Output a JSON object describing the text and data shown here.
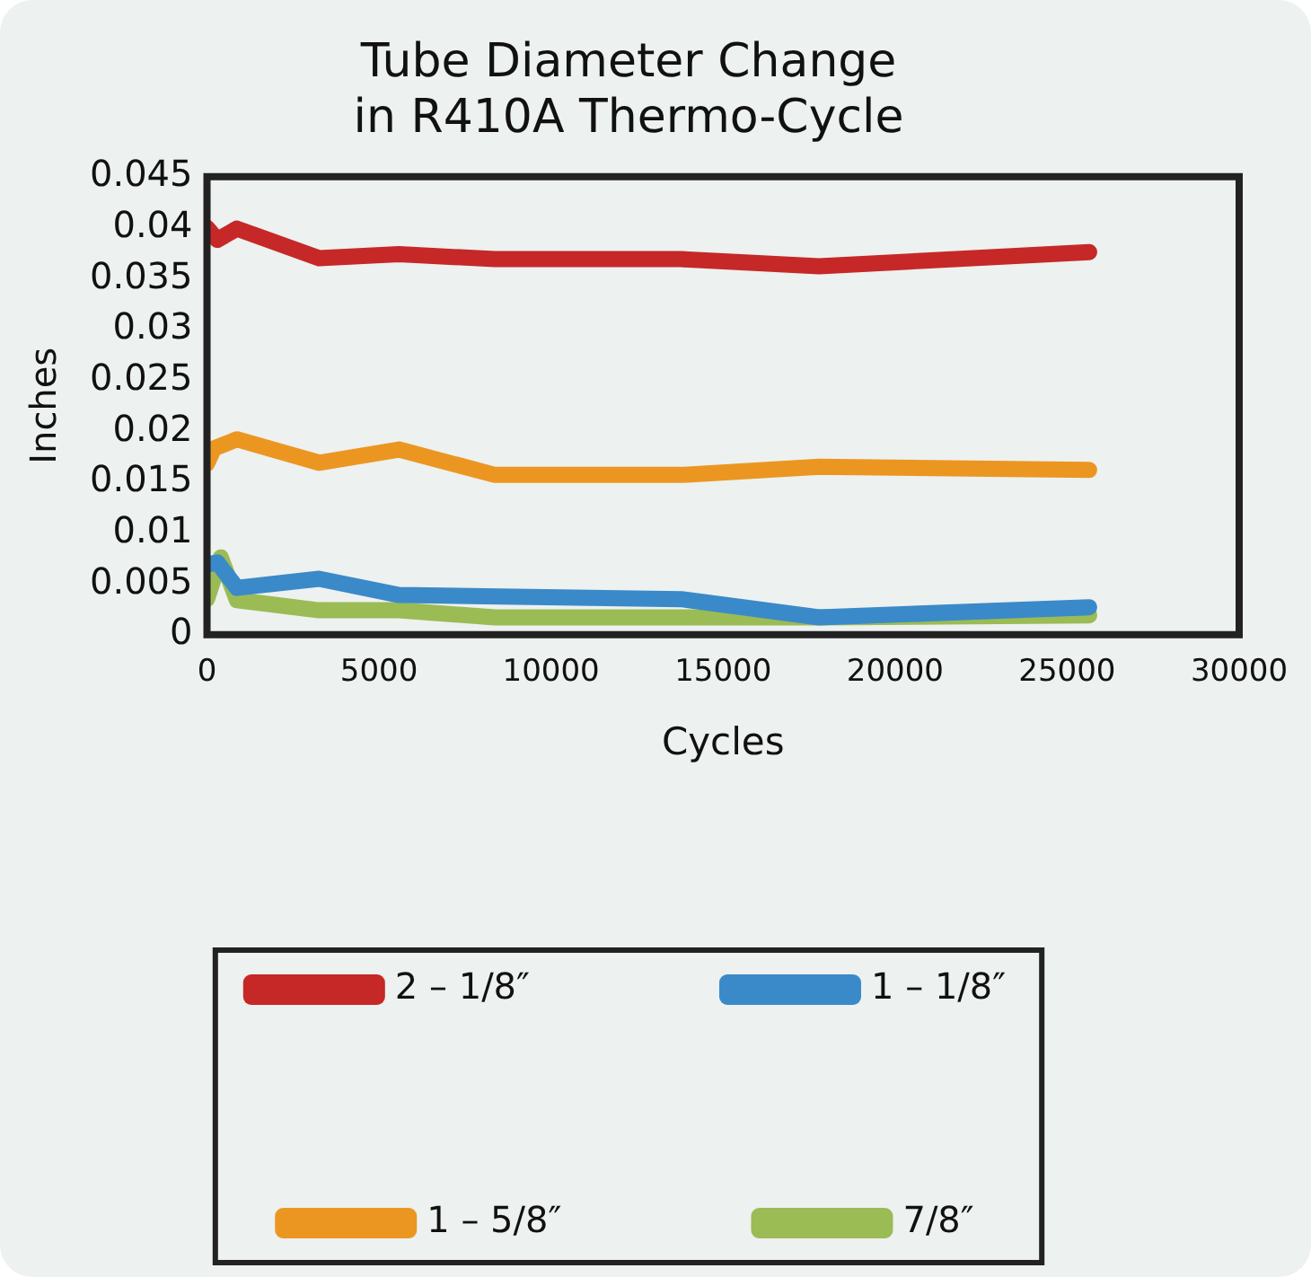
{
  "chart_data": {
    "type": "line",
    "title": "Tube Diameter Change\nin R410A Thermo-Cycle",
    "xlabel": "Cycles",
    "ylabel": "Inches",
    "xlim": [
      0,
      30000
    ],
    "xticks": [
      0,
      5000,
      10000,
      15000,
      20000,
      25000,
      30000
    ],
    "ylim": [
      0,
      0.045
    ],
    "yticks": [
      0,
      0.005,
      0.01,
      0.015,
      0.02,
      0.025,
      0.03,
      0.035,
      0.04,
      0.045
    ],
    "grid": false,
    "legend": "bottom",
    "marker": "none",
    "line_style": "solid",
    "series": [
      {
        "name": "2 – 1/8″",
        "color": "#c62828",
        "x": [
          0,
          300,
          870,
          3256,
          5580,
          8370,
          13780,
          17790,
          25640
        ],
        "values": [
          0.04,
          0.0388,
          0.0399,
          0.037,
          0.0374,
          0.0369,
          0.0369,
          0.0362,
          0.0376
        ]
      },
      {
        "name": "1 – 1/8″",
        "color": "#3a8ac9",
        "x": [
          0,
          300,
          870,
          3256,
          5580,
          13780,
          17790,
          25640
        ],
        "values": [
          0.0069,
          0.0071,
          0.0046,
          0.0055,
          0.0039,
          0.0035,
          0.0017,
          0.0027
        ]
      },
      {
        "name": "1 – 5/8″",
        "color": "#ec9622",
        "x": [
          0,
          200,
          870,
          3256,
          5580,
          8370,
          13780,
          17790,
          25640
        ],
        "values": [
          0.0168,
          0.0183,
          0.0192,
          0.0169,
          0.0182,
          0.0157,
          0.0157,
          0.0165,
          0.0162
        ]
      },
      {
        "name": "7/8″",
        "color": "#9bbb55",
        "x": [
          0,
          400,
          870,
          3256,
          5580,
          8370,
          13780,
          17790,
          25640
        ],
        "values": [
          0.0035,
          0.0076,
          0.0034,
          0.0024,
          0.0024,
          0.0017,
          0.0017,
          0.0017,
          0.0019
        ]
      }
    ]
  }
}
